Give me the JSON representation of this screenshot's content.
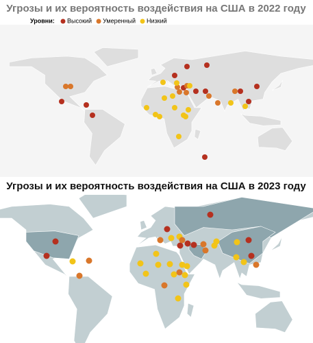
{
  "maps": [
    {
      "title": "Угрозы и их вероятность воздействия на США в 2022 году",
      "legend": {
        "label": "Уровни:",
        "items": [
          {
            "name": "Высокий",
            "color": "#b5301f"
          },
          {
            "name": "Умеренный",
            "color": "#d9772b"
          },
          {
            "name": "Низкий",
            "color": "#f2c418"
          }
        ]
      }
    },
    {
      "title": "Угрозы и их вероятность воздействия на США в 2023 году"
    }
  ]
}
